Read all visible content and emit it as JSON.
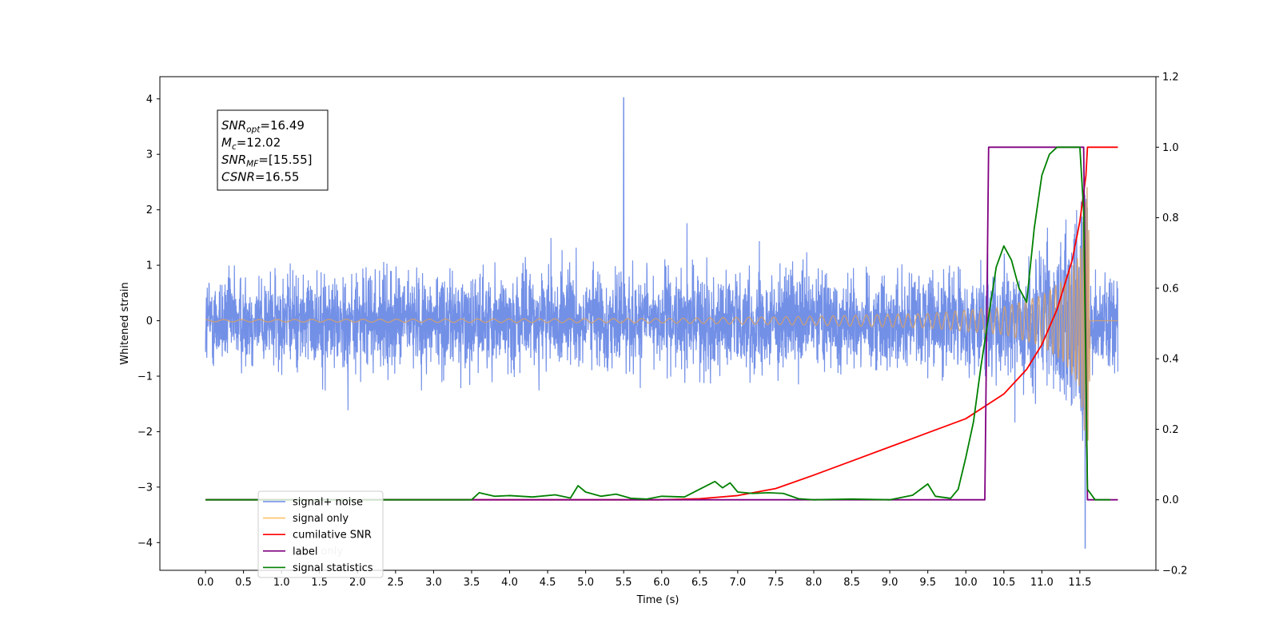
{
  "chart_data": {
    "type": "line",
    "xlabel": "Time (s)",
    "ylabel": "Whitened strain",
    "xlim": [
      -0.6,
      12.5
    ],
    "ylim": [
      -4.5,
      4.4
    ],
    "y2lim": [
      -0.2,
      1.2
    ],
    "x_ticks": [
      "0.0",
      "0.5",
      "1.0",
      "1.5",
      "2.0",
      "2.5",
      "3.0",
      "3.5",
      "4.0",
      "4.5",
      "5.0",
      "5.5",
      "6.0",
      "6.5",
      "7.0",
      "7.5",
      "8.0",
      "8.5",
      "9.0",
      "9.5",
      "10.0",
      "10.5",
      "11.0",
      "11.5"
    ],
    "y_ticks": [
      "−4",
      "−3",
      "−2",
      "−1",
      "0",
      "1",
      "2",
      "3",
      "4"
    ],
    "y2_ticks": [
      "−0.2",
      "0.0",
      "0.2",
      "0.4",
      "0.6",
      "0.8",
      "1.0",
      "1.2"
    ],
    "grid": false,
    "legend_position": "lower-left",
    "legend": [
      {
        "label": "signal+ noise",
        "color": "#6b8ae6"
      },
      {
        "label": "signal only",
        "color": "#ffc266"
      },
      {
        "label": "cumilative SNR",
        "color": "#ff0000"
      },
      {
        "label": "label",
        "color": "#800080"
      },
      {
        "label": "signal statistics",
        "color": "#008000"
      }
    ],
    "legend_overlap_text": "label only",
    "annotation_lines": [
      {
        "sym": "SNR",
        "sub": "opt",
        "rest": "=16.49"
      },
      {
        "sym": "M",
        "sub": "c",
        "rest": "=12.02"
      },
      {
        "sym": "SNR",
        "sub": "MF",
        "rest": "=[15.55]"
      },
      {
        "sym": "CSNR",
        "sub": "",
        "rest": "=16.55"
      }
    ],
    "series": [
      {
        "name": "signal+ noise",
        "axis": "left",
        "color": "#6b8ae6",
        "description_style": "dense noise",
        "t_start": 0.0,
        "t_end": 12.0,
        "typical_range": [
          -1.7,
          1.6
        ],
        "max": 4.02,
        "max_at": 5.5,
        "min": -4.1,
        "min_at": 11.57
      },
      {
        "name": "signal only",
        "axis": "left",
        "color": "#d2a06e",
        "description_style": "chirp",
        "t_start": 0.0,
        "t_end": 12.0,
        "t_merger": 11.6,
        "amplitude_points": [
          [
            0.0,
            0.02
          ],
          [
            6.0,
            0.04
          ],
          [
            8.0,
            0.08
          ],
          [
            9.5,
            0.13
          ],
          [
            10.5,
            0.25
          ],
          [
            11.0,
            0.45
          ],
          [
            11.3,
            0.75
          ],
          [
            11.5,
            1.2
          ],
          [
            11.6,
            2.5
          ],
          [
            11.65,
            0.0
          ]
        ]
      },
      {
        "name": "cumilative SNR",
        "axis": "right",
        "color": "#ff0000",
        "x": [
          0.0,
          6.0,
          6.5,
          7.0,
          7.5,
          8.0,
          8.5,
          9.0,
          9.5,
          10.0,
          10.5,
          10.8,
          11.0,
          11.2,
          11.4,
          11.5,
          11.58,
          11.6,
          12.0
        ],
        "values": [
          0.0,
          0.0,
          0.003,
          0.012,
          0.032,
          0.07,
          0.11,
          0.15,
          0.19,
          0.23,
          0.3,
          0.37,
          0.44,
          0.54,
          0.68,
          0.79,
          0.92,
          1.0,
          1.0
        ]
      },
      {
        "name": "label",
        "axis": "right",
        "color": "#800080",
        "x": [
          0.0,
          10.25,
          10.3,
          11.55,
          11.6,
          12.0
        ],
        "values": [
          0.0,
          0.0,
          1.0,
          1.0,
          0.0,
          0.0
        ]
      },
      {
        "name": "signal statistics",
        "axis": "right",
        "color": "#008000",
        "x": [
          0.0,
          3.5,
          3.6,
          3.8,
          4.0,
          4.3,
          4.6,
          4.8,
          4.9,
          5.0,
          5.2,
          5.4,
          5.6,
          5.8,
          6.0,
          6.3,
          6.5,
          6.7,
          6.8,
          6.9,
          7.0,
          7.2,
          7.4,
          7.6,
          7.8,
          8.0,
          8.5,
          9.0,
          9.3,
          9.5,
          9.6,
          9.8,
          9.9,
          10.0,
          10.1,
          10.2,
          10.3,
          10.4,
          10.5,
          10.6,
          10.7,
          10.75,
          10.8,
          10.9,
          11.0,
          11.1,
          11.2,
          11.5,
          11.55,
          11.6,
          11.7,
          11.9
        ],
        "values": [
          0.0,
          0.0,
          0.02,
          0.01,
          0.012,
          0.008,
          0.014,
          0.005,
          0.04,
          0.022,
          0.01,
          0.016,
          0.004,
          0.002,
          0.01,
          0.008,
          0.03,
          0.052,
          0.034,
          0.048,
          0.022,
          0.018,
          0.02,
          0.018,
          0.003,
          0.0,
          0.002,
          0.0,
          0.013,
          0.045,
          0.01,
          0.004,
          0.03,
          0.12,
          0.22,
          0.38,
          0.52,
          0.66,
          0.72,
          0.68,
          0.6,
          0.58,
          0.56,
          0.77,
          0.92,
          0.98,
          1.0,
          1.0,
          0.82,
          0.03,
          0.0,
          0.0
        ]
      }
    ]
  }
}
